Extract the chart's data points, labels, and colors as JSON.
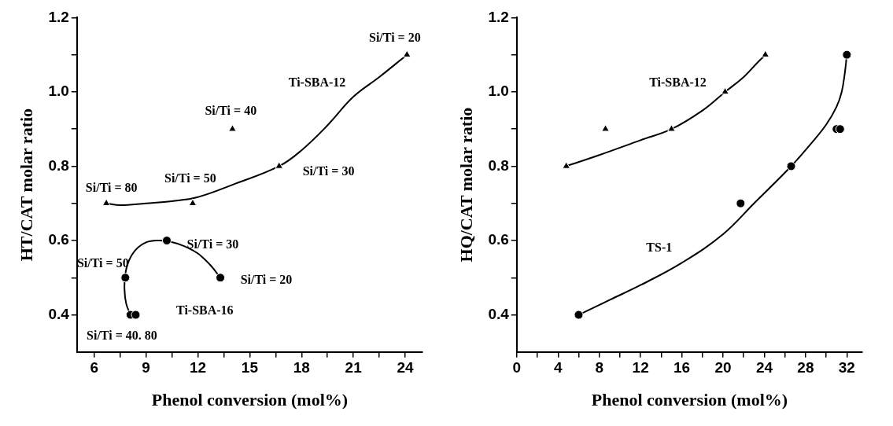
{
  "chart_data": [
    {
      "type": "scatter",
      "xlabel": "Phenol conversion (mol%)",
      "ylabel": "HT/CAT molar ratio",
      "xlim": [
        5,
        25
      ],
      "ylim": [
        0.3,
        1.2
      ],
      "xticks": [
        6,
        {
          "value": 7.5,
          "label": null
        },
        9,
        {
          "value": 10.5,
          "label": null
        },
        12,
        {
          "value": 13.5,
          "label": null
        },
        15,
        {
          "value": 16.5,
          "label": null
        },
        18,
        {
          "value": 19.5,
          "label": null
        },
        21,
        {
          "value": 22.5,
          "label": null
        },
        24
      ],
      "yticks": [
        {
          "value": 0.4,
          "label": "0.4"
        },
        {
          "value": 0.5,
          "label": null
        },
        {
          "value": 0.6,
          "label": "0.6"
        },
        {
          "value": 0.7,
          "label": null
        },
        {
          "value": 0.8,
          "label": "0.8"
        },
        {
          "value": 0.9,
          "label": null
        },
        {
          "value": 1,
          "label": "1.0"
        },
        {
          "value": 1.1,
          "label": null
        },
        {
          "value": 1.2,
          "label": "1.2"
        }
      ],
      "grid": false,
      "legend": false,
      "series": [
        {
          "type": "scatter",
          "marker": "triangle",
          "color": "#000000",
          "x": [
            6.7,
            11.7,
            14,
            16.7,
            24.1
          ],
          "values": [
            0.7,
            0.7,
            0.9,
            0.8,
            1.1
          ]
        },
        {
          "type": "scatter",
          "marker": "circle",
          "color": "#000000",
          "x": [
            7.8,
            8.1,
            8.4,
            10.2,
            13.3
          ],
          "values": [
            0.5,
            0.4,
            0.4,
            0.6,
            0.5
          ]
        },
        {
          "type": "line",
          "marker": "none",
          "line_style": "solid",
          "color": "#000000",
          "x": [
            6.7,
            7.5,
            9,
            10.5,
            12,
            14,
            16.7,
            18,
            19.5,
            21,
            22.5,
            24.1
          ],
          "values": [
            0.7,
            0.695,
            0.7,
            0.706,
            0.717,
            0.75,
            0.8,
            0.843,
            0.91,
            0.987,
            1.04,
            1.1
          ]
        },
        {
          "type": "line",
          "marker": "none",
          "line_style": "solid",
          "color": "#000000",
          "x": [
            8.1,
            7.85,
            7.75,
            7.8,
            8.0,
            8.4,
            9.0,
            9.7,
            10.4,
            11.2,
            12.0,
            12.7,
            13.3
          ],
          "values": [
            0.4,
            0.43,
            0.47,
            0.51,
            0.545,
            0.575,
            0.595,
            0.6,
            0.597,
            0.585,
            0.565,
            0.535,
            0.5
          ]
        }
      ],
      "annotations": [
        "Si/Ti = 20",
        "Ti-SBA-12",
        "Si/Ti = 40",
        "Si/Ti = 30",
        "Si/Ti = 50",
        "Si/Ti = 80",
        "Si/Ti = 30",
        "Si/Ti = 50",
        "Si/Ti = 20",
        "Ti-SBA-16",
        "Si/Ti = 40. 80"
      ]
    },
    {
      "type": "scatter",
      "xlabel": "Phenol conversion (mol%)",
      "ylabel": "HQ/CAT molar ratio",
      "xlim": [
        0,
        33.5
      ],
      "ylim": [
        0.3,
        1.2
      ],
      "xticks": [
        0,
        {
          "value": 2,
          "label": null
        },
        4,
        {
          "value": 6,
          "label": null
        },
        8,
        {
          "value": 10,
          "label": null
        },
        12,
        {
          "value": 14,
          "label": null
        },
        16,
        {
          "value": 18,
          "label": null
        },
        20,
        {
          "value": 22,
          "label": null
        },
        24,
        {
          "value": 26,
          "label": null
        },
        28,
        {
          "value": 30,
          "label": null
        },
        32
      ],
      "yticks": [
        {
          "value": 0.4,
          "label": "0.4"
        },
        {
          "value": 0.5,
          "label": null
        },
        {
          "value": 0.6,
          "label": "0.6"
        },
        {
          "value": 0.7,
          "label": null
        },
        {
          "value": 0.8,
          "label": "0.8"
        },
        {
          "value": 0.9,
          "label": null
        },
        {
          "value": 1,
          "label": "1.0"
        },
        {
          "value": 1.1,
          "label": null
        },
        {
          "value": 1.2,
          "label": "1.2"
        }
      ],
      "grid": false,
      "legend": false,
      "series": [
        {
          "type": "scatter",
          "marker": "triangle",
          "color": "#000000",
          "x": [
            4.8,
            8.6,
            15.0,
            20.2,
            24.1
          ],
          "values": [
            0.8,
            0.9,
            0.9,
            1.0,
            1.1
          ]
        },
        {
          "type": "scatter",
          "marker": "circle",
          "color": "#000000",
          "x": [
            6.0,
            21.7,
            26.6,
            31.0,
            31.35,
            32.0
          ],
          "values": [
            0.4,
            0.7,
            0.8,
            0.9,
            0.9,
            1.1
          ]
        },
        {
          "type": "line",
          "marker": "none",
          "line_style": "solid",
          "color": "#000000",
          "x": [
            4.8,
            8,
            12,
            15,
            18,
            20.2,
            22,
            23.2,
            24.1
          ],
          "values": [
            0.8,
            0.83,
            0.87,
            0.9,
            0.95,
            1.0,
            1.04,
            1.075,
            1.1
          ]
        },
        {
          "type": "line",
          "marker": "none",
          "line_style": "solid",
          "color": "#000000",
          "x": [
            6.0,
            9,
            12,
            16,
            20,
            23,
            26.6,
            28.5,
            30,
            31,
            31.5,
            31.8,
            32.0
          ],
          "values": [
            0.4,
            0.44,
            0.48,
            0.54,
            0.617,
            0.7,
            0.8,
            0.86,
            0.912,
            0.96,
            1.0,
            1.05,
            1.1
          ]
        }
      ],
      "annotations": [
        "Ti-SBA-12",
        "TS-1"
      ]
    }
  ]
}
